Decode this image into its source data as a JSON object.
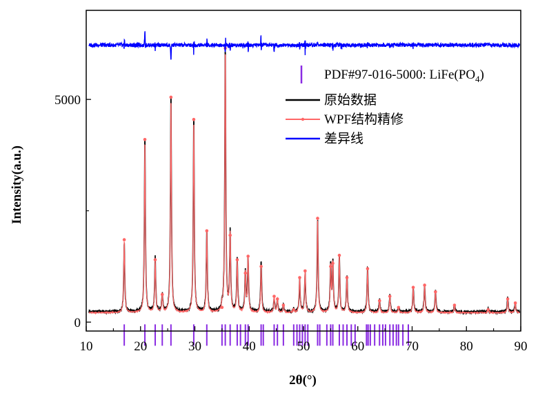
{
  "chart_data": {
    "type": "line",
    "xlabel": "2θ(°)",
    "ylabel": "Intensity(a.u.)",
    "xlim": [
      10,
      90
    ],
    "ylim": [
      -200,
      7000
    ],
    "x_ticks": [
      10,
      20,
      30,
      40,
      50,
      60,
      70,
      80,
      90
    ],
    "y_ticks": [
      0,
      5000
    ],
    "grid": false,
    "legend_position": "top-right",
    "legend": [
      {
        "label_main": "PDF#97-016-5000: LiFe(PO",
        "label_sub": "4",
        "label_tail": ")",
        "color": "#8a2be2",
        "marker": "vertical-bar"
      },
      {
        "label_main": "原始数据",
        "color": "#000000",
        "marker": "line"
      },
      {
        "label_main": "WPF结构精修",
        "color": "#ff6666",
        "marker": "line-dot"
      },
      {
        "label_main": "差异线",
        "color": "#0000ff",
        "marker": "line"
      }
    ],
    "series": [
      {
        "name": "原始数据",
        "color": "#000000",
        "baseline": 230,
        "peaks": [
          [
            17.0,
            1800
          ],
          [
            20.8,
            4200
          ],
          [
            22.7,
            1450
          ],
          [
            24.0,
            650
          ],
          [
            25.6,
            5150
          ],
          [
            29.8,
            4600
          ],
          [
            32.2,
            2100
          ],
          [
            35.0,
            350
          ],
          [
            35.6,
            6200
          ],
          [
            36.5,
            2000
          ],
          [
            37.8,
            1450
          ],
          [
            39.3,
            1150
          ],
          [
            39.8,
            1450
          ],
          [
            42.2,
            1400
          ],
          [
            44.6,
            550
          ],
          [
            45.2,
            500
          ],
          [
            46.3,
            400
          ],
          [
            48.2,
            300
          ],
          [
            49.3,
            950
          ],
          [
            50.3,
            1100
          ],
          [
            52.6,
            2350
          ],
          [
            55.0,
            1300
          ],
          [
            55.4,
            1350
          ],
          [
            56.6,
            1500
          ],
          [
            58.0,
            1050
          ],
          [
            61.8,
            1250
          ],
          [
            64.0,
            500
          ],
          [
            65.9,
            600
          ],
          [
            67.5,
            350
          ],
          [
            70.2,
            800
          ],
          [
            72.3,
            850
          ],
          [
            74.3,
            700
          ],
          [
            77.8,
            400
          ],
          [
            84.0,
            300
          ],
          [
            87.6,
            550
          ],
          [
            89.0,
            450
          ]
        ]
      },
      {
        "name": "WPF结构精修",
        "color": "#ff6666",
        "baseline": 210,
        "peaks": [
          [
            17.0,
            1850
          ],
          [
            20.8,
            4100
          ],
          [
            22.7,
            1400
          ],
          [
            24.0,
            620
          ],
          [
            25.6,
            5050
          ],
          [
            29.8,
            4550
          ],
          [
            32.2,
            2050
          ],
          [
            35.0,
            330
          ],
          [
            35.6,
            6150
          ],
          [
            36.5,
            1950
          ],
          [
            37.8,
            1400
          ],
          [
            39.3,
            1100
          ],
          [
            39.8,
            1480
          ],
          [
            42.2,
            1250
          ],
          [
            44.6,
            580
          ],
          [
            45.2,
            520
          ],
          [
            46.3,
            380
          ],
          [
            48.2,
            280
          ],
          [
            49.3,
            1000
          ],
          [
            50.3,
            1150
          ],
          [
            52.6,
            2330
          ],
          [
            55.0,
            1250
          ],
          [
            55.4,
            1320
          ],
          [
            56.6,
            1500
          ],
          [
            58.0,
            1000
          ],
          [
            61.8,
            1200
          ],
          [
            64.0,
            480
          ],
          [
            65.9,
            580
          ],
          [
            67.5,
            330
          ],
          [
            70.2,
            780
          ],
          [
            72.3,
            830
          ],
          [
            74.3,
            680
          ],
          [
            77.8,
            380
          ],
          [
            84.0,
            280
          ],
          [
            87.6,
            520
          ],
          [
            89.0,
            430
          ]
        ]
      },
      {
        "name": "差异线",
        "color": "#0000ff",
        "offset": 6220,
        "features": [
          [
            17.0,
            120
          ],
          [
            20.8,
            300
          ],
          [
            22.7,
            -100
          ],
          [
            25.6,
            -350
          ],
          [
            29.8,
            -200
          ],
          [
            32.2,
            120
          ],
          [
            35.6,
            250
          ],
          [
            36.5,
            -120
          ],
          [
            39.8,
            -150
          ],
          [
            42.2,
            250
          ],
          [
            44.6,
            -120
          ],
          [
            49.3,
            -100
          ],
          [
            50.3,
            -200
          ],
          [
            52.6,
            80
          ],
          [
            55.4,
            -90
          ],
          [
            57.0,
            -100
          ],
          [
            61.8,
            100
          ],
          [
            65.9,
            60
          ],
          [
            70.2,
            80
          ]
        ]
      }
    ],
    "reference_lines": {
      "name": "PDF#97-016-5000: LiFe(PO4)",
      "color": "#8a2be2",
      "y_top": -50,
      "positions": [
        [
          17.0,
          480
        ],
        [
          20.8,
          480
        ],
        [
          22.7,
          480
        ],
        [
          24.0,
          480
        ],
        [
          25.6,
          480
        ],
        [
          29.8,
          480
        ],
        [
          32.2,
          480
        ],
        [
          35.0,
          480
        ],
        [
          35.6,
          480
        ],
        [
          36.5,
          480
        ],
        [
          37.8,
          480
        ],
        [
          38.4,
          480
        ],
        [
          39.3,
          480
        ],
        [
          39.8,
          480
        ],
        [
          42.2,
          480
        ],
        [
          42.6,
          480
        ],
        [
          44.6,
          480
        ],
        [
          45.2,
          480
        ],
        [
          46.3,
          480
        ],
        [
          48.2,
          480
        ],
        [
          48.8,
          480
        ],
        [
          49.3,
          480
        ],
        [
          49.8,
          480
        ],
        [
          50.3,
          480
        ],
        [
          50.8,
          480
        ],
        [
          52.6,
          480
        ],
        [
          53.0,
          480
        ],
        [
          54.3,
          480
        ],
        [
          55.0,
          480
        ],
        [
          55.4,
          480
        ],
        [
          56.6,
          480
        ],
        [
          57.3,
          480
        ],
        [
          58.0,
          480
        ],
        [
          58.8,
          480
        ],
        [
          59.5,
          480
        ],
        [
          61.6,
          480
        ],
        [
          61.9,
          480
        ],
        [
          62.3,
          480
        ],
        [
          63.1,
          480
        ],
        [
          64.0,
          480
        ],
        [
          64.6,
          480
        ],
        [
          65.1,
          480
        ],
        [
          65.9,
          480
        ],
        [
          66.5,
          480
        ],
        [
          67.1,
          480
        ],
        [
          67.5,
          480
        ],
        [
          68.3,
          480
        ],
        [
          69.3,
          480
        ]
      ]
    }
  }
}
